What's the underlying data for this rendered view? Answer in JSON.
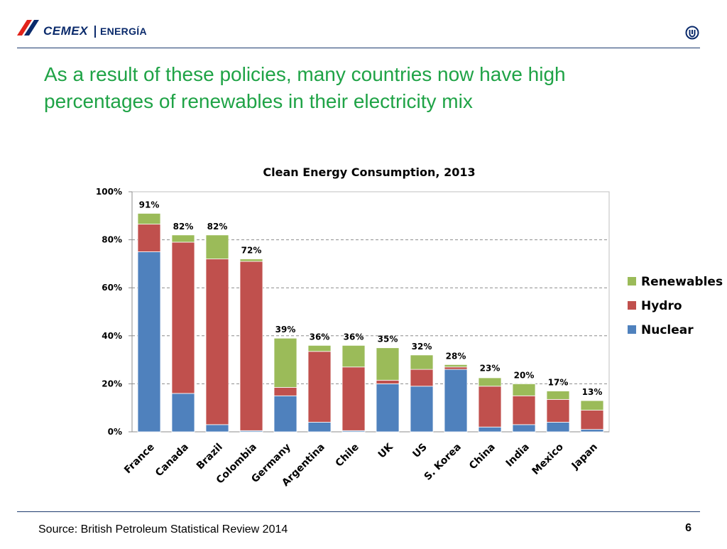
{
  "header": {
    "brand": "CEMEX",
    "brand_sub": "ENERGÍA"
  },
  "slide": {
    "title_line1": "As a result of these policies, many countries now have high",
    "title_line2": "percentages of renewables in their electricity mix",
    "source": "Source: British Petroleum Statistical Review 2014",
    "page_number": "6"
  },
  "colors": {
    "nuclear": "#4f81bd",
    "hydro": "#c0504d",
    "renewables": "#9bbb59",
    "brand_green": "#1fa346",
    "brand_navy": "#0a2a6b"
  },
  "chart_data": {
    "type": "bar",
    "stacked": true,
    "title": "Clean Energy Consumption, 2013",
    "xlabel": "",
    "ylabel": "",
    "ylim": [
      0,
      100
    ],
    "yticks": [
      "0%",
      "20%",
      "40%",
      "60%",
      "80%",
      "100%"
    ],
    "ytick_values": [
      0,
      20,
      40,
      60,
      80,
      100
    ],
    "grid": true,
    "legend_position": "right",
    "categories": [
      "France",
      "Canada",
      "Brazil",
      "Colombia",
      "Germany",
      "Argentina",
      "Chile",
      "UK",
      "US",
      "S. Korea",
      "China",
      "India",
      "Mexico",
      "Japan"
    ],
    "series": [
      {
        "name": "Nuclear",
        "color": "#4f81bd",
        "values": [
          75,
          16,
          3,
          0.5,
          15,
          4,
          0.5,
          20,
          19,
          26,
          2,
          3,
          4,
          1
        ]
      },
      {
        "name": "Hydro",
        "color": "#c0504d",
        "values": [
          11.5,
          63,
          69,
          70.5,
          3.5,
          29.5,
          26.5,
          1.5,
          7,
          1,
          17,
          12,
          9.5,
          8
        ]
      },
      {
        "name": "Renewables",
        "color": "#9bbb59",
        "values": [
          4.5,
          3,
          10,
          1,
          20.5,
          2.5,
          9,
          13.5,
          6,
          1,
          3.5,
          5,
          3.5,
          4
        ]
      }
    ],
    "totals": [
      91,
      82,
      82,
      72,
      39,
      36,
      36,
      35,
      32,
      28,
      23,
      20,
      17,
      13
    ],
    "total_labels": [
      "91%",
      "82%",
      "82%",
      "72%",
      "39%",
      "36%",
      "36%",
      "35%",
      "32%",
      "28%",
      "23%",
      "20%",
      "17%",
      "13%"
    ],
    "legend": [
      "Renewables",
      "Hydro",
      "Nuclear"
    ]
  }
}
